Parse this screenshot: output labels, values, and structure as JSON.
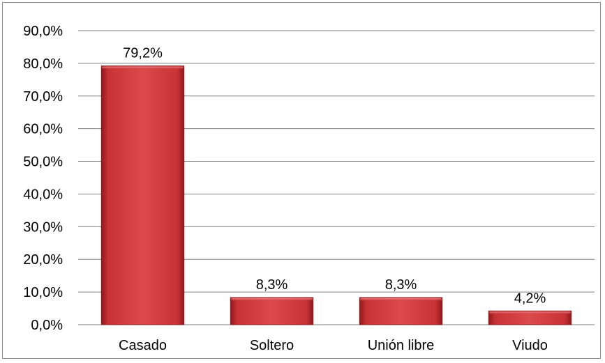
{
  "chart_data": {
    "type": "bar",
    "categories": [
      "Casado",
      "Soltero",
      "Unión libre",
      "Viudo"
    ],
    "values": [
      79.2,
      8.3,
      8.3,
      4.2
    ],
    "data_labels": [
      "79,2%",
      "8,3%",
      "8,3%",
      "4,2%"
    ],
    "y_ticks": [
      "0,0%",
      "10,0%",
      "20,0%",
      "30,0%",
      "40,0%",
      "50,0%",
      "60,0%",
      "70,0%",
      "80,0%",
      "90,0%"
    ],
    "ylim": [
      0,
      90
    ],
    "grid": true,
    "legend": "none",
    "bar_color": "#c0282a",
    "gridline_color": "#808080"
  }
}
